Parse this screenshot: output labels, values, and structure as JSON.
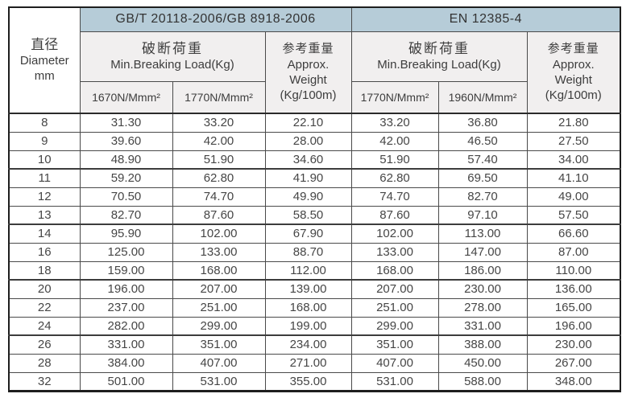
{
  "colors": {
    "header_blue": "#b6ccd8",
    "subheader_bg": "#f1efef",
    "body_bg": "#ffffff",
    "outer_border": "#1e1e1e",
    "inner_border": "#4a4a4a",
    "text": "#3d3d3d"
  },
  "header": {
    "diameter": {
      "line1": "直径",
      "line2": "Diameter",
      "line3": "mm"
    },
    "standard_left": "GB/T 20118-2006/GB 8918-2006",
    "standard_right": "EN 12385-4",
    "breaking_load_zh": "破断荷重",
    "breaking_load_en": "Min.Breaking Load(Kg)",
    "weight_lines": [
      "参考重量",
      "Approx.",
      "Weight",
      "(Kg/100m)"
    ],
    "grades_left": [
      "1670N/Mmm²",
      "1770N/Mmm²"
    ],
    "grades_right": [
      "1770N/Mmm²",
      "1960N/Mmm²"
    ]
  },
  "rows": [
    {
      "diameter": "8",
      "values": [
        "31.30",
        "33.20",
        "22.10",
        "33.20",
        "36.80",
        "21.80"
      ]
    },
    {
      "diameter": "9",
      "values": [
        "39.60",
        "42.00",
        "28.00",
        "42.00",
        "46.50",
        "27.50"
      ]
    },
    {
      "diameter": "10",
      "values": [
        "48.90",
        "51.90",
        "34.60",
        "51.90",
        "57.40",
        "34.00"
      ]
    },
    {
      "diameter": "11",
      "values": [
        "59.20",
        "62.80",
        "41.90",
        "62.80",
        "69.50",
        "41.10"
      ]
    },
    {
      "diameter": "12",
      "values": [
        "70.50",
        "74.70",
        "49.90",
        "74.70",
        "82.70",
        "49.00"
      ]
    },
    {
      "diameter": "13",
      "values": [
        "82.70",
        "87.60",
        "58.50",
        "87.60",
        "97.10",
        "57.50"
      ]
    },
    {
      "diameter": "14",
      "values": [
        "95.90",
        "102.00",
        "67.90",
        "102.00",
        "113.00",
        "66.60"
      ]
    },
    {
      "diameter": "16",
      "values": [
        "125.00",
        "133.00",
        "88.70",
        "133.00",
        "147.00",
        "87.00"
      ]
    },
    {
      "diameter": "18",
      "values": [
        "159.00",
        "168.00",
        "112.00",
        "168.00",
        "186.00",
        "110.00"
      ]
    },
    {
      "diameter": "20",
      "values": [
        "196.00",
        "207.00",
        "139.00",
        "207.00",
        "230.00",
        "136.00"
      ]
    },
    {
      "diameter": "22",
      "values": [
        "237.00",
        "251.00",
        "168.00",
        "251.00",
        "278.00",
        "165.00"
      ]
    },
    {
      "diameter": "24",
      "values": [
        "282.00",
        "299.00",
        "199.00",
        "299.00",
        "331.00",
        "196.00"
      ]
    },
    {
      "diameter": "26",
      "values": [
        "331.00",
        "351.00",
        "234.00",
        "351.00",
        "388.00",
        "230.00"
      ]
    },
    {
      "diameter": "28",
      "values": [
        "384.00",
        "407.00",
        "271.00",
        "407.00",
        "450.00",
        "267.00"
      ]
    },
    {
      "diameter": "32",
      "values": [
        "501.00",
        "531.00",
        "355.00",
        "531.00",
        "588.00",
        "348.00"
      ]
    }
  ]
}
